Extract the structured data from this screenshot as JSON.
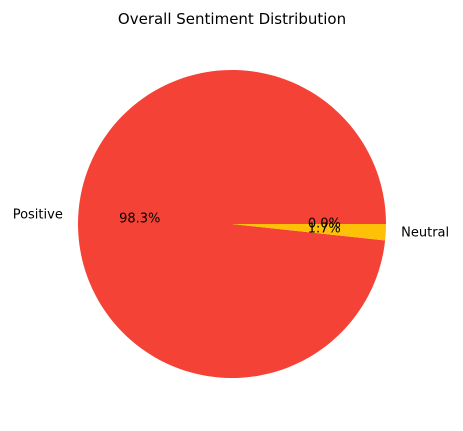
{
  "chart_data": {
    "type": "pie",
    "title": "Overall Sentiment Distribution",
    "slices": [
      {
        "label": "Positive",
        "value": 98.3,
        "percent_label": "98.3%",
        "color": "#f44336"
      },
      {
        "label": "Neutral",
        "value": 1.7,
        "percent_label": "1.7%",
        "color": "#ffc107"
      },
      {
        "label": "",
        "value": 0.0,
        "percent_label": "0.0%",
        "color": "#4caf50"
      }
    ],
    "start_angle_deg": 0,
    "direction": "counterclockwise"
  }
}
